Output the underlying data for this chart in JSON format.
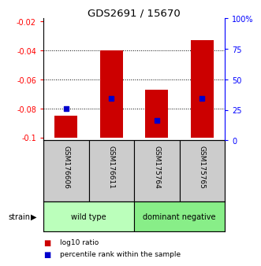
{
  "title": "GDS2691 / 15670",
  "samples": [
    "GSM176606",
    "GSM176611",
    "GSM175764",
    "GSM175765"
  ],
  "bar_bottom": -0.1,
  "bar_tops": [
    -0.085,
    -0.04,
    -0.067,
    -0.033
  ],
  "percentile_values": [
    -0.08,
    -0.073,
    -0.088,
    -0.073
  ],
  "ylim_left": [
    -0.102,
    -0.018
  ],
  "ylim_right": [
    0,
    100
  ],
  "yticks_left": [
    -0.1,
    -0.08,
    -0.06,
    -0.04,
    -0.02
  ],
  "yticks_right": [
    0,
    25,
    50,
    75,
    100
  ],
  "ytick_labels_left": [
    "-0.1",
    "-0.08",
    "-0.06",
    "-0.04",
    "-0.02"
  ],
  "ytick_labels_right": [
    "0",
    "25",
    "50",
    "75",
    "100%"
  ],
  "groups": [
    {
      "label": "wild type",
      "samples": [
        0,
        1
      ],
      "color": "#bbffbb"
    },
    {
      "label": "dominant negative",
      "samples": [
        2,
        3
      ],
      "color": "#88ee88"
    }
  ],
  "bar_color": "#cc0000",
  "blue_color": "#0000cc",
  "bar_width": 0.5,
  "label_box_color": "#cccccc",
  "legend_items": [
    {
      "color": "#cc0000",
      "label": "log10 ratio"
    },
    {
      "color": "#0000cc",
      "label": "percentile rank within the sample"
    }
  ]
}
